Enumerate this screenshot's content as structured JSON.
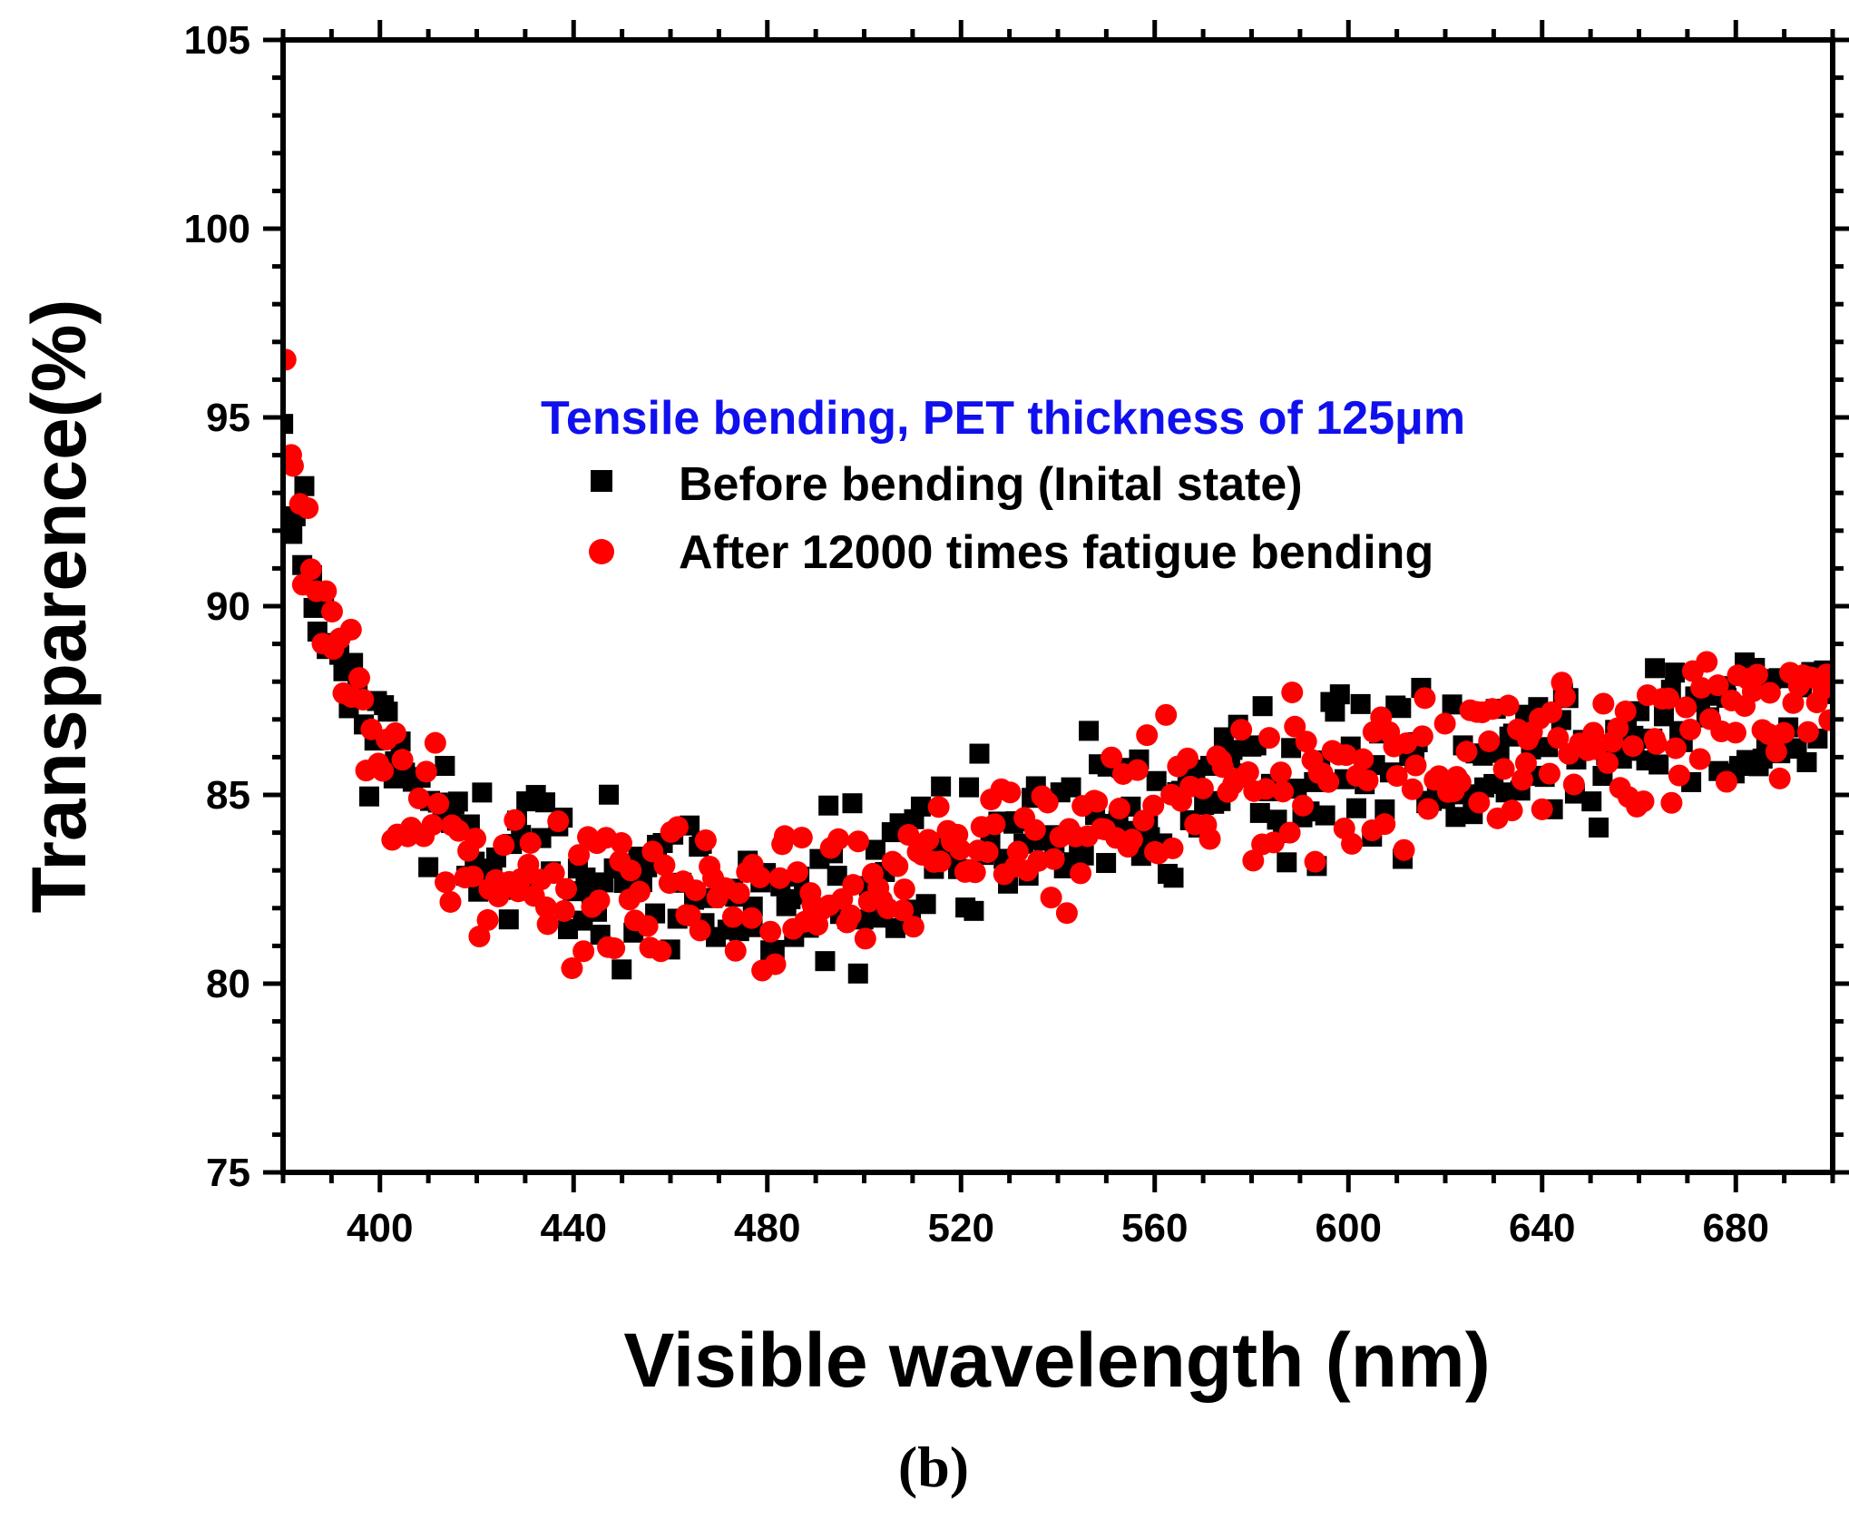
{
  "panel_label": "(b)",
  "chart_data": {
    "type": "scatter",
    "title": "",
    "xlabel": "Visible wavelength (nm)",
    "ylabel": "Transparence(%)",
    "xlim": [
      380,
      700
    ],
    "ylim": [
      75,
      105
    ],
    "x_ticks": [
      400,
      440,
      480,
      520,
      560,
      600,
      640,
      680
    ],
    "y_ticks": [
      75,
      80,
      85,
      90,
      95,
      100,
      105
    ],
    "grid": false,
    "legend": {
      "title": "Tensile bending, PET thickness of 125μm",
      "placement": "upper-center",
      "title_color": "#1010ee"
    },
    "series": [
      {
        "name": "Before bending (Inital state)",
        "marker": "square",
        "color": "#000000",
        "anchors": [
          [
            380,
            95.5
          ],
          [
            382,
            92.5
          ],
          [
            385,
            91.2
          ],
          [
            388,
            89.5
          ],
          [
            392,
            87.8
          ],
          [
            396,
            87.0
          ],
          [
            400,
            86.2
          ],
          [
            410,
            84.8
          ],
          [
            420,
            84.0
          ],
          [
            430,
            83.4
          ],
          [
            440,
            83.0
          ],
          [
            450,
            82.7
          ],
          [
            460,
            82.6
          ],
          [
            470,
            82.4
          ],
          [
            480,
            82.3
          ],
          [
            490,
            82.4
          ],
          [
            500,
            82.6
          ],
          [
            510,
            82.9
          ],
          [
            520,
            83.2
          ],
          [
            530,
            83.7
          ],
          [
            540,
            84.0
          ],
          [
            550,
            84.3
          ],
          [
            560,
            84.6
          ],
          [
            570,
            84.8
          ],
          [
            580,
            85.1
          ],
          [
            590,
            85.3
          ],
          [
            600,
            85.6
          ],
          [
            610,
            85.8
          ],
          [
            620,
            86.0
          ],
          [
            630,
            86.2
          ],
          [
            640,
            86.4
          ],
          [
            650,
            86.5
          ],
          [
            660,
            86.6
          ],
          [
            670,
            86.8
          ],
          [
            680,
            86.9
          ],
          [
            690,
            87.2
          ],
          [
            700,
            87.5
          ]
        ],
        "spread": 1.5,
        "count": 320
      },
      {
        "name": "After 12000 times fatigue bending",
        "marker": "circle",
        "color": "#ff0000",
        "anchors": [
          [
            380,
            97.5
          ],
          [
            382,
            93.5
          ],
          [
            385,
            91.5
          ],
          [
            388,
            89.8
          ],
          [
            392,
            88.0
          ],
          [
            396,
            87.0
          ],
          [
            400,
            86.0
          ],
          [
            410,
            84.6
          ],
          [
            420,
            83.8
          ],
          [
            430,
            83.1
          ],
          [
            440,
            82.7
          ],
          [
            450,
            82.5
          ],
          [
            460,
            82.4
          ],
          [
            470,
            82.2
          ],
          [
            480,
            82.1
          ],
          [
            490,
            82.3
          ],
          [
            500,
            82.6
          ],
          [
            510,
            82.9
          ],
          [
            520,
            83.3
          ],
          [
            530,
            83.7
          ],
          [
            540,
            84.1
          ],
          [
            550,
            84.4
          ],
          [
            560,
            84.6
          ],
          [
            570,
            84.8
          ],
          [
            580,
            85.1
          ],
          [
            590,
            85.4
          ],
          [
            600,
            85.7
          ],
          [
            610,
            85.9
          ],
          [
            620,
            86.1
          ],
          [
            630,
            86.3
          ],
          [
            640,
            86.4
          ],
          [
            650,
            86.5
          ],
          [
            660,
            86.6
          ],
          [
            670,
            86.8
          ],
          [
            680,
            87.0
          ],
          [
            690,
            87.3
          ],
          [
            700,
            87.6
          ]
        ],
        "spread": 1.4,
        "count": 340
      }
    ]
  }
}
